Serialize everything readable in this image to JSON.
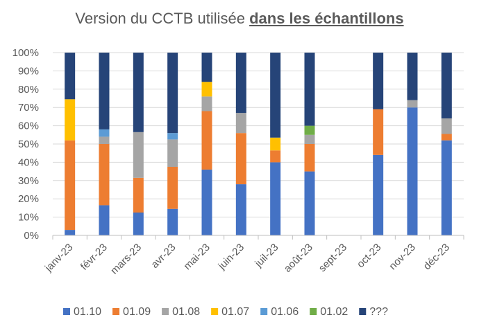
{
  "chart_data": {
    "type": "bar",
    "stacked": true,
    "title_plain": "Version du CCTB utilisée ",
    "title_emphasis": "dans les échantillons",
    "categories": [
      "janv-23",
      "févr-23",
      "mars-23",
      "avr-23",
      "mai-23",
      "juin-23",
      "juil-23",
      "août-23",
      "sept-23",
      "oct-23",
      "nov-23",
      "déc-23"
    ],
    "ylim": [
      0,
      100
    ],
    "yticks": [
      "0%",
      "10%",
      "20%",
      "30%",
      "40%",
      "50%",
      "60%",
      "70%",
      "80%",
      "90%",
      "100%"
    ],
    "legend_position": "bottom",
    "series": [
      {
        "name": "01.10",
        "color": "#4472C4",
        "values": [
          3,
          16.5,
          12.5,
          14.5,
          36,
          28,
          40,
          35,
          0,
          44,
          70,
          52
        ]
      },
      {
        "name": "01.09",
        "color": "#ED7D31",
        "values": [
          49,
          33.5,
          19,
          23,
          32,
          28,
          6.5,
          15,
          0,
          25,
          0,
          3.5
        ]
      },
      {
        "name": "01.08",
        "color": "#A5A5A5",
        "values": [
          0,
          4,
          25,
          15,
          8,
          11,
          0,
          5,
          0,
          0,
          4,
          8.5
        ]
      },
      {
        "name": "01.07",
        "color": "#FFC000",
        "values": [
          22.5,
          0,
          0,
          0,
          8,
          0,
          7,
          0,
          0,
          0,
          0,
          0
        ]
      },
      {
        "name": "01.06",
        "color": "#5B9BD5",
        "values": [
          0,
          4,
          0,
          3.5,
          0,
          0,
          0,
          0,
          0,
          0,
          0,
          0
        ]
      },
      {
        "name": "01.02",
        "color": "#70AD47",
        "values": [
          0,
          0,
          0,
          0,
          0,
          0,
          0,
          5,
          0,
          0,
          0,
          0
        ]
      },
      {
        "name": "???",
        "color": "#264478",
        "values": [
          25.5,
          42,
          43.5,
          44,
          16,
          33,
          46.5,
          40,
          0,
          31,
          26,
          36
        ]
      }
    ]
  }
}
